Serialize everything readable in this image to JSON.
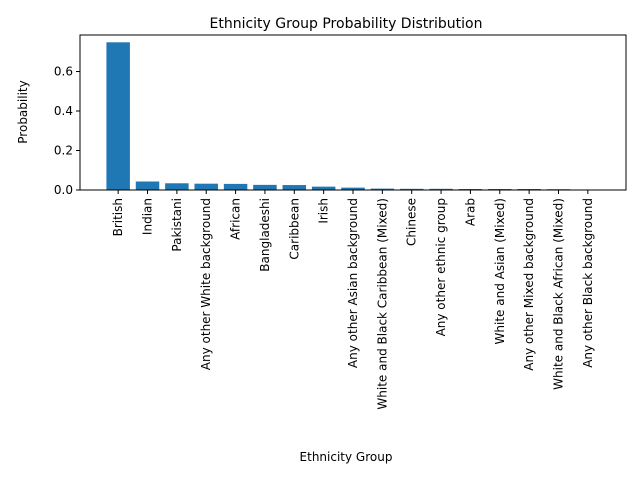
{
  "chart_data": {
    "type": "bar",
    "title": "Ethnicity Group Probability Distribution",
    "xlabel": "Ethnicity Group",
    "ylabel": "Probability",
    "ylim": [
      0,
      0.785
    ],
    "yticks": [
      0.0,
      0.2,
      0.4,
      0.6
    ],
    "ytick_labels": [
      "0.0",
      "0.2",
      "0.4",
      "0.6"
    ],
    "grid": false,
    "bar_color": "#1f77b4",
    "categories": [
      "British",
      "Indian",
      "Pakistani",
      "Any other White background",
      "African",
      "Bangladeshi",
      "Caribbean",
      "Irish",
      "Any other Asian background",
      "White and Black Caribbean (Mixed)",
      "Chinese",
      "Any other ethnic group",
      "Arab",
      "White and Asian (Mixed)",
      "Any other Mixed background",
      "White and Black African (Mixed)",
      "Any other Black background"
    ],
    "values": [
      0.748,
      0.043,
      0.034,
      0.032,
      0.031,
      0.026,
      0.025,
      0.017,
      0.012,
      0.007,
      0.006,
      0.006,
      0.005,
      0.005,
      0.005,
      0.004,
      0.001
    ]
  }
}
